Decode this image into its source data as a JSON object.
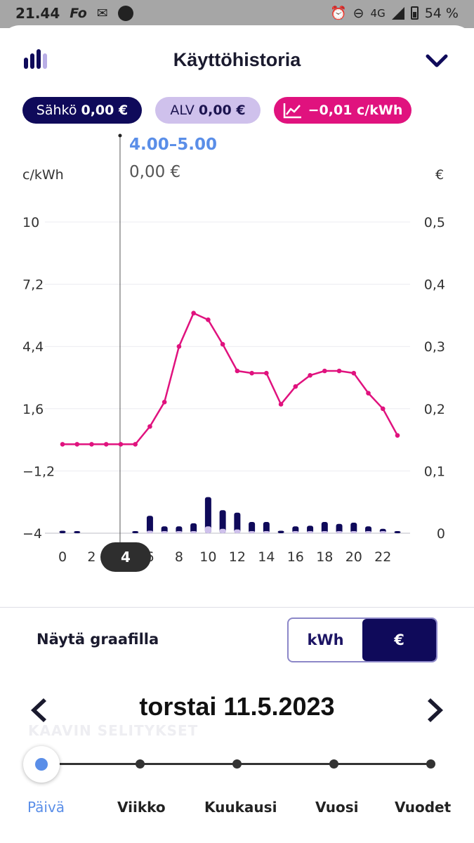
{
  "status_bar": {
    "time": "21.44",
    "app_icons": [
      "fo-icon",
      "gmail-icon",
      "circle-icon"
    ],
    "network": "4G",
    "battery": "54 %"
  },
  "header": {
    "title": "Käyttöhistoria"
  },
  "chips": {
    "sahko_label": "Sähkö",
    "sahko_value": "0,00 €",
    "alv_label": "ALV",
    "alv_value": "0,00 €",
    "price_value": "−0,01 c/kWh"
  },
  "tooltip": {
    "range": "4.00–5.00",
    "value": "0,00 €"
  },
  "colors": {
    "navy": "#0f0a5a",
    "lavender": "#cfc1ec",
    "magenta": "#e0127e",
    "blue_accent": "#5a8ee8"
  },
  "chart_data": {
    "type": "bar",
    "left_axis_unit": "c/kWh",
    "right_axis_unit": "€",
    "left_ticks": [
      "10",
      "7,2",
      "4,4",
      "1,6",
      "−1,2",
      "−4"
    ],
    "left_tick_values": [
      10,
      7.2,
      4.4,
      1.6,
      -1.2,
      -4
    ],
    "right_ticks": [
      "0,5",
      "0,4",
      "0,3",
      "0,2",
      "0,1",
      "0"
    ],
    "x_ticks": [
      "0",
      "2",
      "4",
      "6",
      "8",
      "10",
      "12",
      "14",
      "16",
      "18",
      "20",
      "22"
    ],
    "x": [
      0,
      1,
      2,
      3,
      4,
      5,
      6,
      7,
      8,
      9,
      10,
      11,
      12,
      13,
      14,
      15,
      16,
      17,
      18,
      19,
      20,
      21,
      22,
      23
    ],
    "ylim_left": [
      -4,
      10
    ],
    "ylim_right": [
      0,
      0.5
    ],
    "grid": true,
    "selected_hour": 4,
    "series": [
      {
        "kind": "line",
        "axis": "left",
        "values": [
          0.0,
          0.0,
          0.0,
          0.0,
          0.0,
          0.0,
          0.8,
          1.9,
          4.4,
          5.9,
          5.6,
          4.5,
          3.3,
          3.2,
          3.2,
          1.8,
          2.6,
          3.1,
          3.3,
          3.3,
          3.2,
          2.3,
          1.6,
          0.4
        ]
      },
      {
        "kind": "bar",
        "axis": "right",
        "values": [
          0.004,
          0.003,
          0.0,
          0.0,
          0.0,
          0.002,
          0.028,
          0.011,
          0.011,
          0.016,
          0.058,
          0.037,
          0.033,
          0.018,
          0.018,
          0.004,
          0.011,
          0.012,
          0.018,
          0.015,
          0.017,
          0.011,
          0.007,
          0.002
        ]
      },
      {
        "kind": "bar",
        "axis": "right",
        "values": [
          0.0,
          0.0,
          0.0,
          0.0,
          0.0,
          0.0,
          0.004,
          0.002,
          0.002,
          0.003,
          0.011,
          0.007,
          0.006,
          0.003,
          0.003,
          0.0,
          0.002,
          0.002,
          0.003,
          0.003,
          0.003,
          0.002,
          0.001,
          0.0
        ]
      }
    ]
  },
  "selected_label": "4",
  "display_toggle": {
    "label": "Näytä graafilla",
    "options": [
      "kWh",
      "€"
    ],
    "selected": "€"
  },
  "ghost_text": "KAAVIN SELITYKSET",
  "date_nav": {
    "date": "torstai 11.5.2023"
  },
  "periods": {
    "items": [
      "Päivä",
      "Viikko",
      "Kuukausi",
      "Vuosi",
      "Vuodet"
    ],
    "selected": "Päivä"
  }
}
